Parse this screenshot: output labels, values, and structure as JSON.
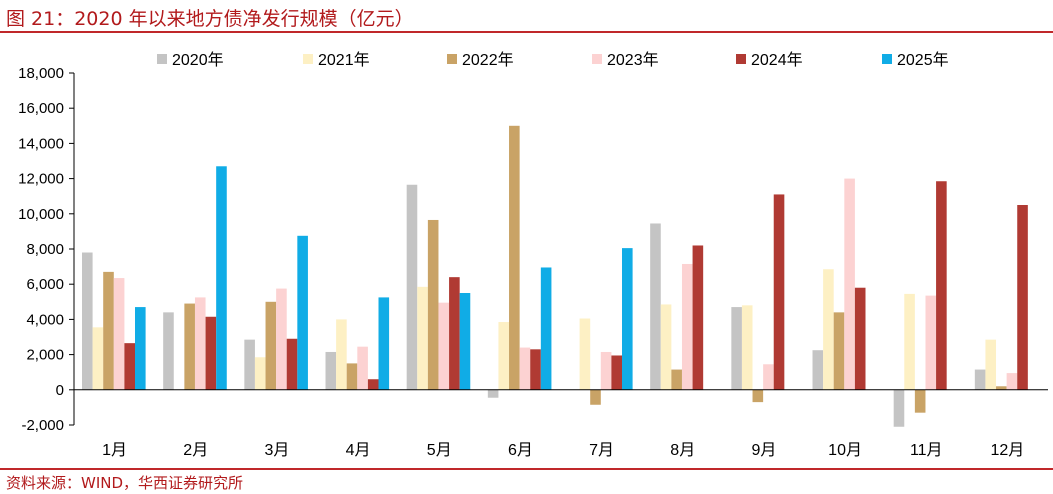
{
  "header": {
    "title": "图 21：2020 年以来地方债净发行规模（亿元）"
  },
  "footer": {
    "source": "资料来源：WIND，华西证券研究所"
  },
  "chart_data": {
    "type": "bar",
    "title": "图 21：2020 年以来地方债净发行规模（亿元）",
    "categories": [
      "1月",
      "2月",
      "3月",
      "4月",
      "5月",
      "6月",
      "7月",
      "8月",
      "9月",
      "10月",
      "11月",
      "12月"
    ],
    "ylim": [
      -2000,
      18000
    ],
    "yticks": [
      -2000,
      0,
      2000,
      4000,
      6000,
      8000,
      10000,
      12000,
      14000,
      16000,
      18000
    ],
    "ytick_labels": [
      "-2,000",
      "0",
      "2,000",
      "4,000",
      "6,000",
      "8,000",
      "10,000",
      "12,000",
      "14,000",
      "16,000",
      "18,000"
    ],
    "legend_position": "top",
    "grid": false,
    "series": [
      {
        "name": "2020年",
        "color": "#c4c4c4",
        "values": [
          7800,
          4400,
          2850,
          2150,
          11650,
          -450,
          null,
          9450,
          4700,
          2250,
          -2100,
          1150
        ]
      },
      {
        "name": "2021年",
        "color": "#fdf0c4",
        "values": [
          3550,
          null,
          1850,
          4000,
          5850,
          3850,
          4050,
          4850,
          4800,
          6850,
          5450,
          2850
        ]
      },
      {
        "name": "2022年",
        "color": "#c9a366",
        "values": [
          6700,
          4900,
          5000,
          1500,
          9650,
          15000,
          -850,
          1150,
          -700,
          4400,
          -1300,
          200
        ]
      },
      {
        "name": "2023年",
        "color": "#fcd2d2",
        "values": [
          6350,
          5250,
          5750,
          2450,
          4950,
          2400,
          2150,
          7150,
          1450,
          12000,
          5350,
          950
        ]
      },
      {
        "name": "2024年",
        "color": "#b03a33",
        "values": [
          2650,
          4150,
          2900,
          600,
          6400,
          2300,
          1950,
          8200,
          11100,
          5800,
          11850,
          10500
        ]
      },
      {
        "name": "2025年",
        "color": "#10ace6",
        "values": [
          4700,
          12700,
          8750,
          5250,
          5500,
          6950,
          8050,
          null,
          null,
          null,
          null,
          null
        ]
      }
    ]
  }
}
